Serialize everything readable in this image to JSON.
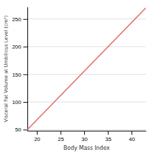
{
  "chart_data": {
    "type": "line",
    "xlabel": "Body Mass Index",
    "ylabel": "Visceral Fat Volume at Umbilicus Level (cm²)",
    "x": [
      18,
      43
    ],
    "values": [
      50,
      270
    ],
    "color": "#e07070",
    "xlim": [
      18,
      43
    ],
    "ylim": [
      48,
      272
    ],
    "xticks": [
      20,
      25,
      30,
      35,
      40
    ],
    "yticks": [
      50,
      100,
      150,
      200,
      250
    ],
    "grid": true
  }
}
